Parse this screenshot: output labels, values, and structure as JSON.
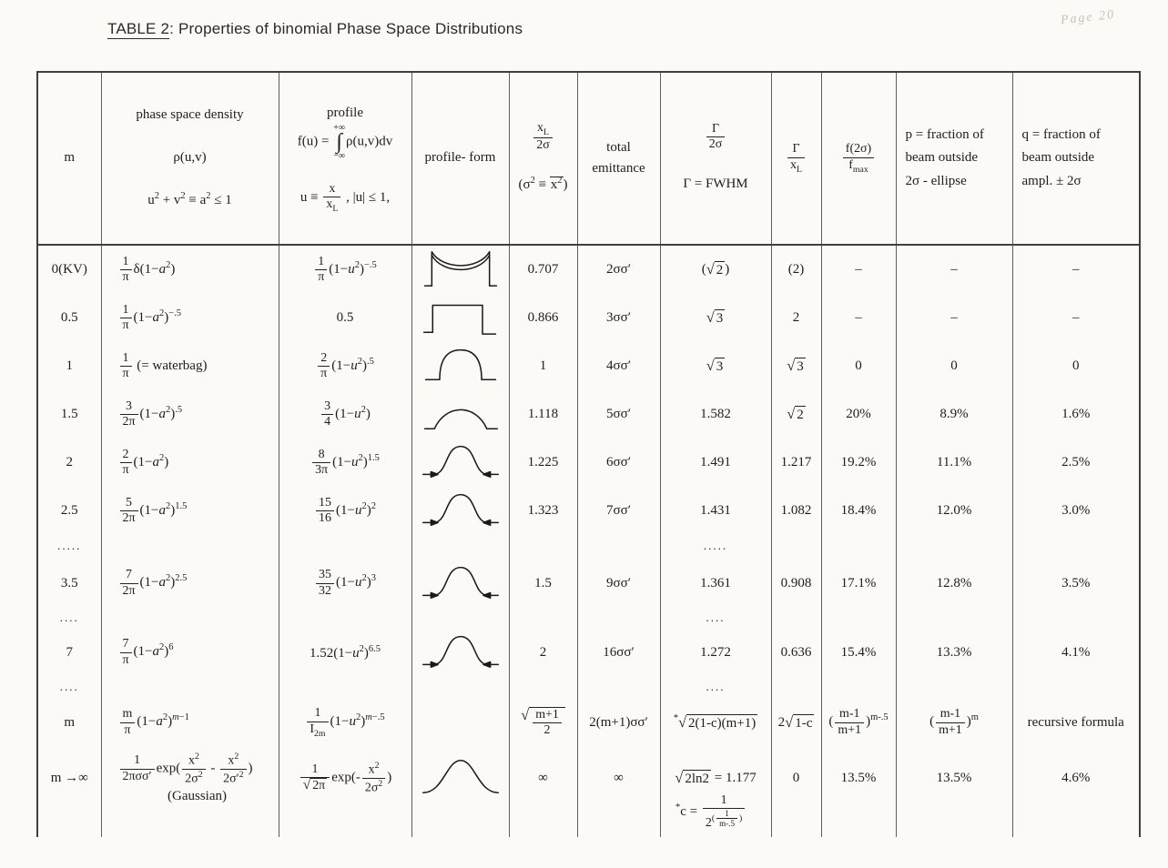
{
  "page": {
    "title": {
      "label": "TABLE 2",
      "rest": ": Properties of binomial Phase Space Distributions"
    },
    "handwritten_note": "Page 20"
  },
  "table": {
    "columns": [
      {
        "id": "m",
        "header": "m"
      },
      {
        "id": "density",
        "header": "phase space density<br><br>ρ(u,v)<br><br>u<sup>2</sup> + v<sup>2</sup> ≡ a<sup>2</sup> ≤ 1"
      },
      {
        "id": "profile",
        "header": "profile<br>f(u) = <ints><il>+∞</il><ib>∫</ib><il>−∞</il></ints>ρ(u,v)dv<br><br>u ≡ <frac><fn>x</fn><fd>x<sub>L</sub></fd></frac> , |u| ≤ 1,"
      },
      {
        "id": "form",
        "header": "profile- form"
      },
      {
        "id": "xl",
        "header": "<frac><fn>x<sub>L</sub></fn><fd>2σ</fd></frac><br><br>(σ<sup>2</sup> ≡ <ovl>x<sup>2</sup></ovl>)"
      },
      {
        "id": "emit",
        "header": "total<br>emittance"
      },
      {
        "id": "g2s",
        "header": "<frac><fn>Γ</fn><fd>2σ</fd></frac><br><br>Γ = FWHM"
      },
      {
        "id": "gxl",
        "header": "<frac><fn>Γ</fn><fd>x<sub>L</sub></fd></frac>"
      },
      {
        "id": "f2s",
        "header": "<frac><fn>f(2σ)</fn><fd>f<sub>max</sub></fd></frac>"
      },
      {
        "id": "p",
        "header": "p = fraction of<br>beam outside<br>2σ - ellipse"
      },
      {
        "id": "q",
        "header": "q = fraction of<br>beam outside<br>ampl. ± 2σ"
      }
    ],
    "rows": [
      {
        "id": "r0kv",
        "kind": "data",
        "cells": {
          "m": "0(KV)",
          "density": "<frac><fn>1</fn><fd>π</fd></frac>δ(1−<i>a</i><sup>2</sup>)",
          "profile": "<frac><fn>1</fn><fd>π</fd></frac>(1−<i>u</i><sup>2</sup>)<sup>−.5</sup>",
          "form": "bathtub",
          "xl": "0.707",
          "emit": "2σσ′",
          "g2s": "(<rt2><rb>2</rb></rt2>)",
          "gxl": "(2)",
          "f2s": "–",
          "p": "–",
          "q": "–"
        }
      },
      {
        "id": "r05",
        "kind": "data",
        "cells": {
          "m": "0.5",
          "density": "<frac><fn>1</fn><fd>π</fd></frac>(1−<i>a</i><sup>2</sup>)<sup>−.5</sup>",
          "profile": "0.5",
          "form": "step",
          "xl": "0.866",
          "emit": "3σσ′",
          "g2s": "<rt2><rb>3</rb></rt2>",
          "gxl": "2",
          "f2s": "–",
          "p": "–",
          "q": "–"
        }
      },
      {
        "id": "r1",
        "kind": "data",
        "cells": {
          "m": "1",
          "density": "<frac><fn>1</fn><fd>π</fd></frac>  (= waterbag)",
          "profile": "<frac><fn>2</fn><fd>π</fd></frac>(1−<i>u</i><sup>2</sup>)<sup>.5</sup>",
          "form": "dome",
          "xl": "1",
          "emit": "4σσ′",
          "g2s": "<rt2><rb>3</rb></rt2>",
          "gxl": "<rt2><rb>3</rb></rt2>",
          "f2s": "0",
          "p": "0",
          "q": "0"
        }
      },
      {
        "id": "r15",
        "kind": "data",
        "cells": {
          "m": "1.5",
          "density": "<frac><fn>3</fn><fd>2π</fd></frac>(1−<i>a</i><sup>2</sup>)<sup>.5</sup>",
          "profile": "<frac><fn>3</fn><fd>4</fd></frac>(1−<i>u</i><sup>2</sup>)",
          "form": "parabola",
          "xl": "1.118",
          "emit": "5σσ′",
          "g2s": "1.582",
          "gxl": "<rt2><rb>2</rb></rt2>",
          "f2s": "20%",
          "p": "8.9%",
          "q": "1.6%"
        }
      },
      {
        "id": "r2",
        "kind": "data",
        "cells": {
          "m": "2",
          "density": "<frac><fn>2</fn><fd>π</fd></frac>(1−<i>a</i><sup>2</sup>)",
          "profile": "<frac><fn>8</fn><fd>3π</fd></frac>(1−<i>u</i><sup>2</sup>)<sup>1.5</sup>",
          "form": "bell",
          "xl": "1.225",
          "emit": "6σσ′",
          "g2s": "1.491",
          "gxl": "1.217",
          "f2s": "19.2%",
          "p": "11.1%",
          "q": "2.5%"
        }
      },
      {
        "id": "r25",
        "kind": "data",
        "cells": {
          "m": "2.5",
          "density": "<frac><fn>5</fn><fd>2π</fd></frac>(1−<i>a</i><sup>2</sup>)<sup>1.5</sup>",
          "profile": "<frac><fn>15</fn><fd>16</fd></frac>(1−<i>u</i><sup>2</sup>)<sup>2</sup>",
          "form": "bell",
          "xl": "1.323",
          "emit": "7σσ′",
          "g2s": "1.431",
          "gxl": "1.082",
          "f2s": "18.4%",
          "p": "12.0%",
          "q": "3.0%"
        }
      },
      {
        "id": "dots1",
        "kind": "dots",
        "cells": {
          "m": ".....",
          "g2s": "....."
        }
      },
      {
        "id": "r35",
        "kind": "data",
        "cells": {
          "m": "3.5",
          "density": "<frac><fn>7</fn><fd>2π</fd></frac>(1−<i>a</i><sup>2</sup>)<sup>2.5</sup>",
          "profile": "<frac><fn>35</fn><fd>32</fd></frac>(1−<i>u</i><sup>2</sup>)<sup>3</sup>",
          "form": "bell",
          "xl": "1.5",
          "emit": "9σσ′",
          "g2s": "1.361",
          "gxl": "0.908",
          "f2s": "17.1%",
          "p": "12.8%",
          "q": "3.5%"
        }
      },
      {
        "id": "dots2",
        "kind": "dots",
        "cells": {
          "m": "....",
          "g2s": "...."
        }
      },
      {
        "id": "r7",
        "kind": "data",
        "cells": {
          "m": "7",
          "density": "<frac><fn>7</fn><fd>π</fd></frac>(1−<i>a</i><sup>2</sup>)<sup>6</sup>",
          "profile": "1.52(1−<i>u</i><sup>2</sup>)<sup>6.5</sup>",
          "form": "bell",
          "xl": "2",
          "emit": "16σσ′",
          "g2s": "1.272",
          "gxl": "0.636",
          "f2s": "15.4%",
          "p": "13.3%",
          "q": "4.1%"
        }
      },
      {
        "id": "dots3",
        "kind": "dots",
        "cells": {
          "m": "....",
          "g2s": "...."
        }
      },
      {
        "id": "rm",
        "kind": "data",
        "cells": {
          "m": "m",
          "density": "<frac><fn>m</fn><fd>π</fd></frac>(1−<i>a</i><sup>2</sup>)<sup><i>m</i>−1</sup>",
          "profile": "<frac><fn>1</fn><fd>I<sub>2m</sub></fd></frac>(1−<i>u</i><sup>2</sup>)<sup><i>m</i>−.5</sup>",
          "form": "",
          "xl": "<rt2><rb><frac><fn>m+1</fn><fd>2</fd></frac></rb></rt2>",
          "emit": "2(m+1)σσ′",
          "g2s": "<sup>*</sup><rt2><rb>2(1-c)(m+1)</rb></rt2>",
          "gxl": "2<rt2><rb>1-c</rb></rt2>",
          "f2s": "(<frac><fn>m-1</fn><fd>m+1</fd></frac>)<sup>m-.5</sup>",
          "p": "(<frac><fn>m-1</fn><fd>m+1</fd></frac>)<sup>m</sup>",
          "q": "recursive formula"
        }
      },
      {
        "id": "rinf",
        "kind": "data",
        "cells": {
          "m": "m →∞",
          "density": "<frac><fn>1</fn><fd>2πσσ′</fd></frac>exp(<frac><fn>x<sup>2</sup></fn><fd>2σ<sup>2</sup></fd></frac> - <frac><fn>x<sup>2</sup></fn><fd>2σ′<sup>2</sup></fd></frac>)<cent>(Gaussian)</cent>",
          "profile": "<frac><fn>1</fn><fd><rt2><rb>2π</rb></rt2></fd></frac>exp(-<frac><fn>x<sup>2</sup></fn><fd>2σ<sup>2</sup></fd></frac>)",
          "form": "gauss",
          "xl": "∞",
          "emit": "∞",
          "g2s": "<rt2><rb>2ln2</rb></rt2> = 1.177",
          "gxl": "0",
          "f2s": "13.5%",
          "p": "13.5%",
          "q": "4.6%"
        }
      }
    ],
    "footnote": "<sup>*</sup>c = <frac><fn>1</fn><fd>2<sup>(<frac><fn>1</fn><fd>m-.5</fd></frac>)</sup></fd></frac>"
  }
}
